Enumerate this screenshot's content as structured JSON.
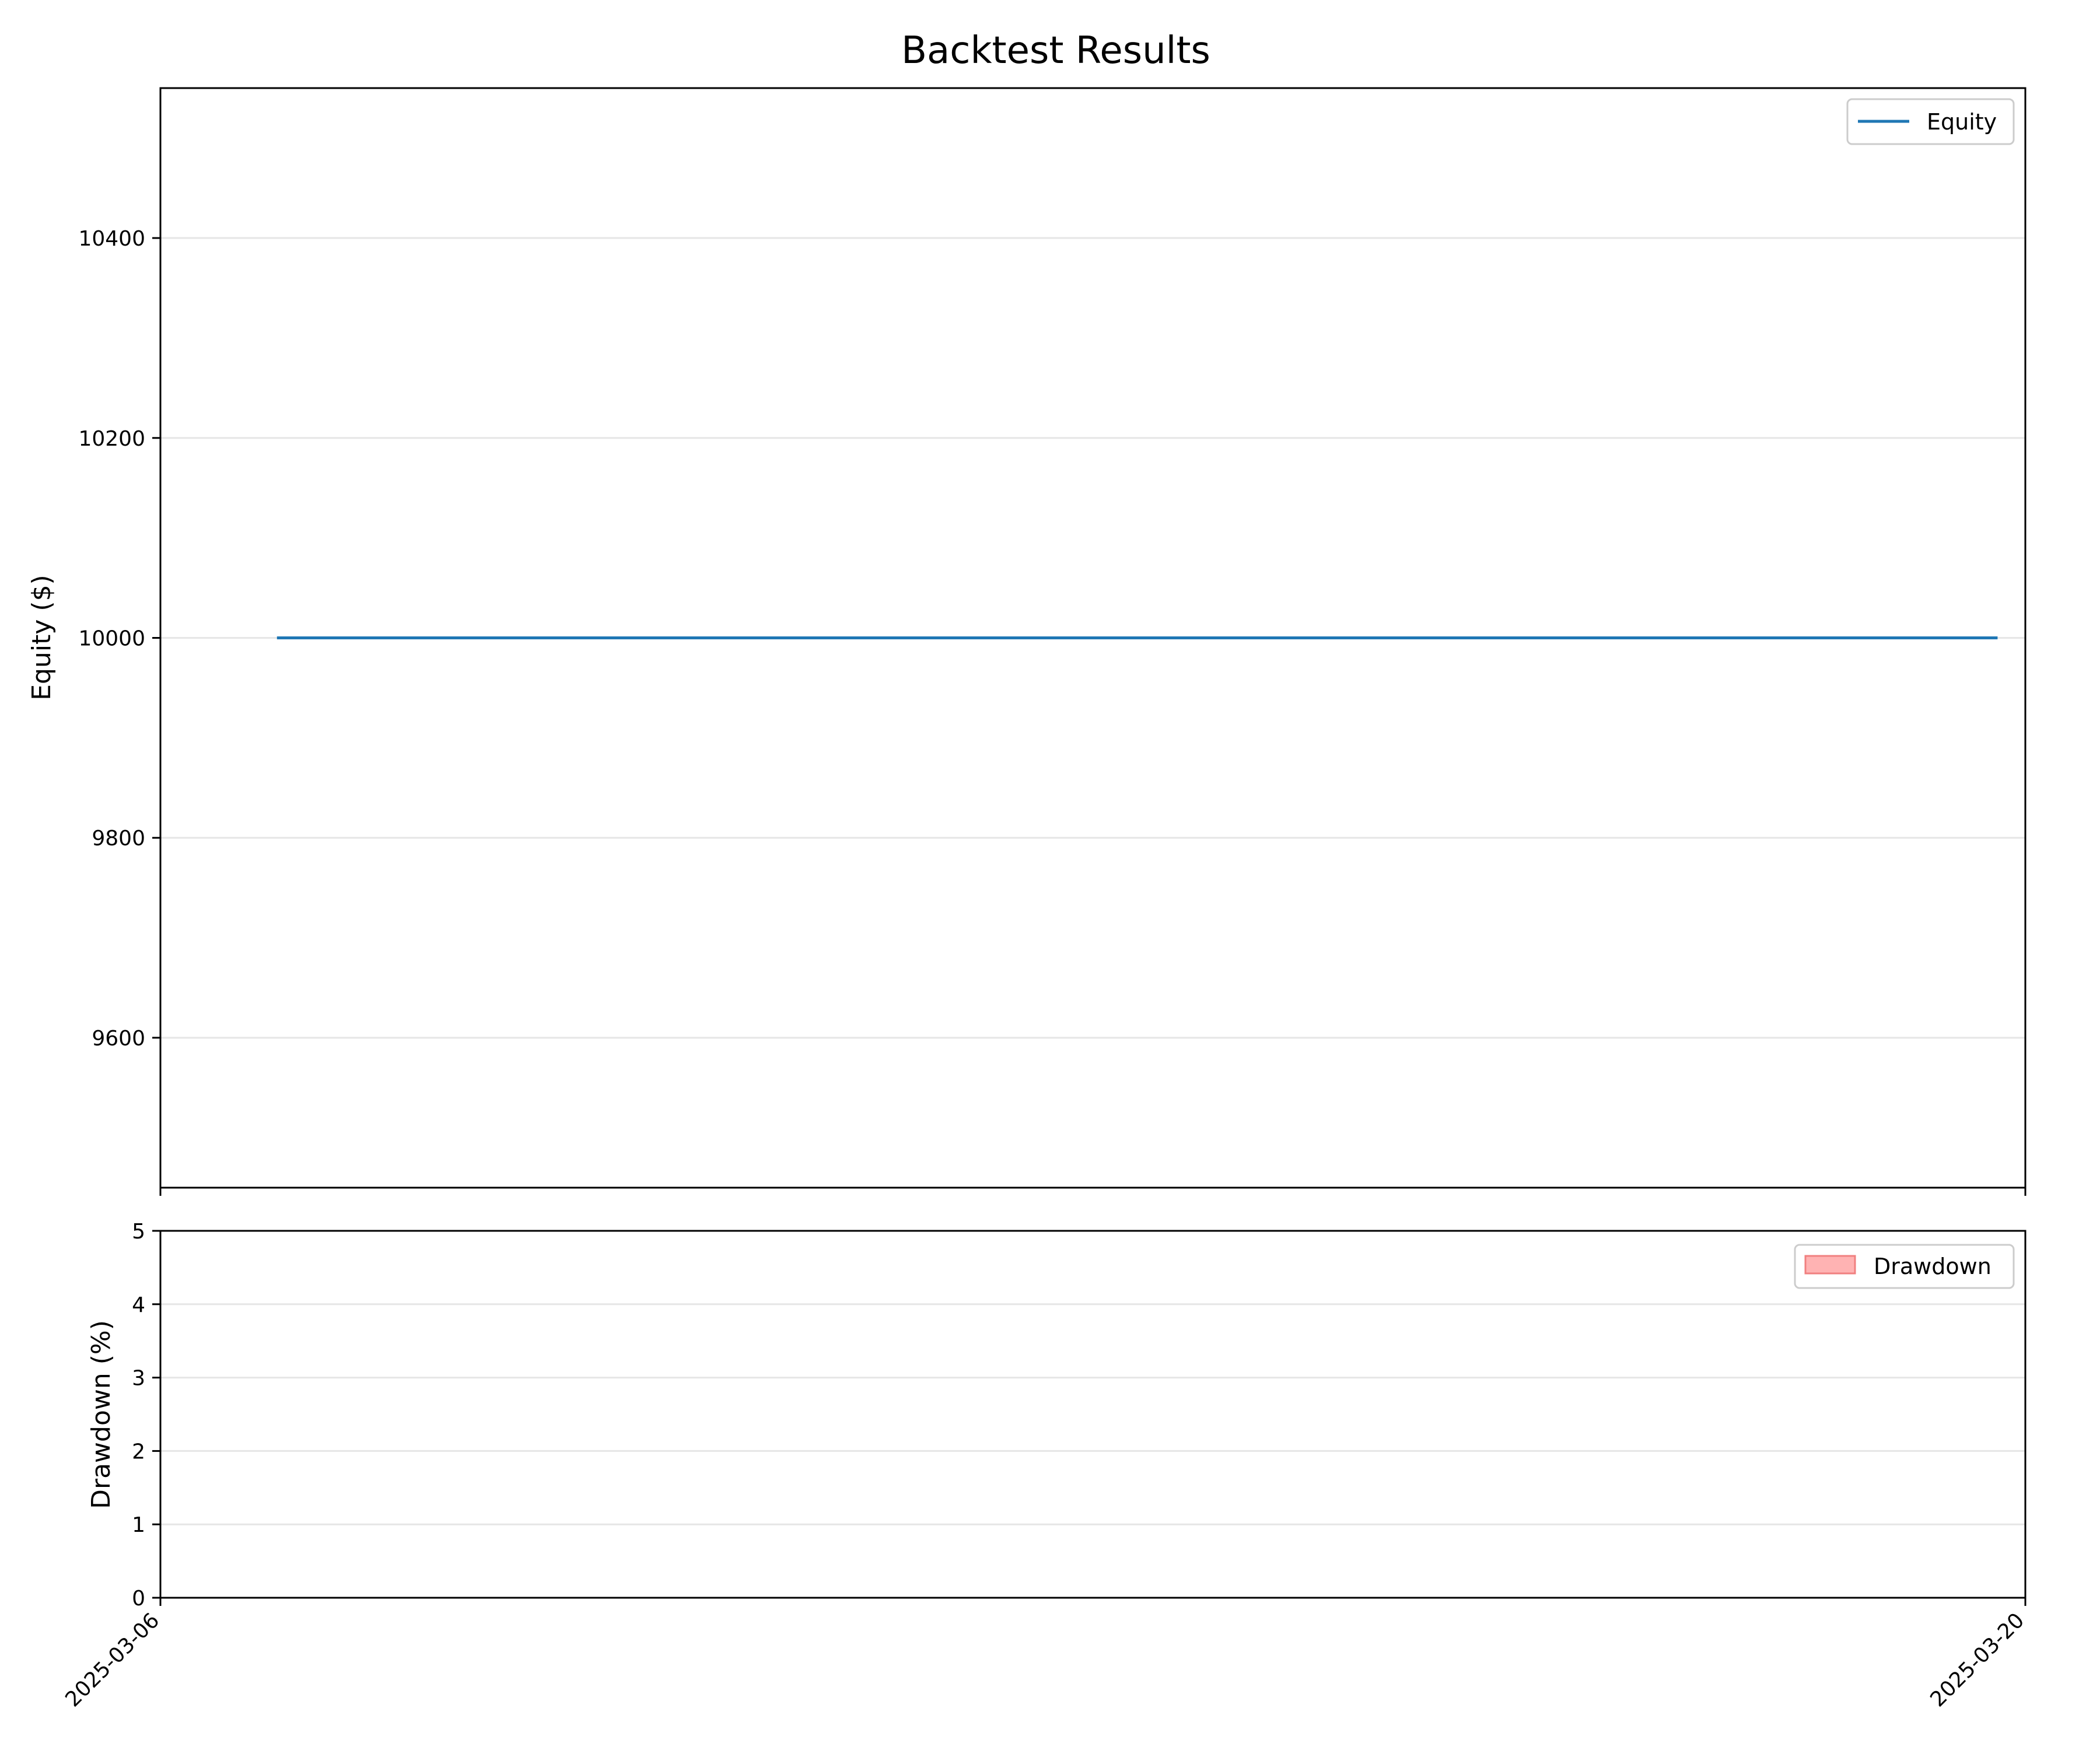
{
  "title": "Backtest Results",
  "colors": {
    "equity_line": "#1f77b4",
    "drawdown_fill": "#ffb3b3",
    "drawdown_edge": "#f08080",
    "grid": "#e6e6e6",
    "axes": "#000000"
  },
  "chart_data": [
    {
      "type": "line",
      "panel": "equity",
      "title": "Backtest Results",
      "xlabel": "",
      "ylabel": "Equity ($)",
      "xlim": [
        "2025-03-06",
        "2025-03-20"
      ],
      "ylim": [
        9450,
        10550
      ],
      "yticks": [
        9600,
        9800,
        10000,
        10200,
        10400
      ],
      "grid": "y",
      "legend": "top-right",
      "series": [
        {
          "name": "Equity",
          "color": "#1f77b4",
          "x": [
            "2025-03-06T21:00",
            "2025-03-19T19:00"
          ],
          "y": [
            10000,
            10000
          ]
        }
      ]
    },
    {
      "type": "area",
      "panel": "drawdown",
      "xlabel": "",
      "ylabel": "Drawdown (%)",
      "xlim": [
        "2025-03-06",
        "2025-03-20"
      ],
      "ylim": [
        0,
        5
      ],
      "yticks": [
        0,
        1,
        2,
        3,
        4,
        5
      ],
      "xticks": [
        "2025-03-06",
        "2025-03-20"
      ],
      "grid": "y",
      "legend": "top-right",
      "series": [
        {
          "name": "Drawdown",
          "color": "#ffb3b3",
          "x": [
            "2025-03-06T21:00",
            "2025-03-19T19:00"
          ],
          "y": [
            0,
            0
          ]
        }
      ]
    }
  ]
}
